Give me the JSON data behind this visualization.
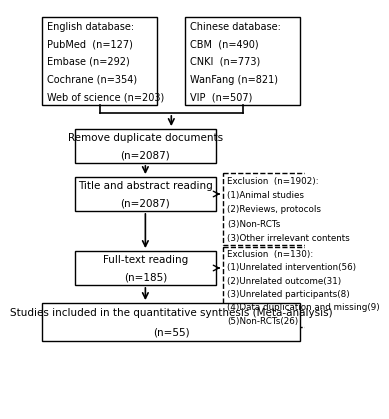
{
  "bg_color": "#ffffff",
  "text_color": "#000000",
  "english_db_lines": [
    "English database:",
    "PubMed  (n=127)",
    "Embase (n=292)",
    "Cochrane (n=354)",
    "Web of science (n=203)"
  ],
  "chinese_db_lines": [
    "Chinese database:",
    "CBM  (n=490)",
    "CNKI  (n=773)",
    "WanFang (n=821)",
    "VIP  (n=507)"
  ],
  "remove_dup_lines": [
    "Remove duplicate documents",
    "(n=2087)"
  ],
  "title_abstract_lines": [
    "Title and abstract reading",
    "(n=2087)"
  ],
  "exclusion1_lines": [
    "Exclusion  (n=1902):",
    "(1)Animal studies",
    "(2)Reviews, protocols",
    "(3)Non-RCTs",
    "(3)Other irrelevant contents"
  ],
  "fulltext_lines": [
    "Full-text reading",
    "(n=185)"
  ],
  "exclusion2_lines": [
    "Exclusion  (n=130):",
    "(1)Unrelated intervention(56)",
    "(2)Unrelated outcome(31)",
    "(3)Unrelated participants(8)",
    "(4)Data duplication and missing(9)",
    "(5)Non-RCTs(26)"
  ],
  "final_lines": [
    "Studies included in the quantitative synthesis (Meta-analysis)",
    "(n=55)"
  ]
}
